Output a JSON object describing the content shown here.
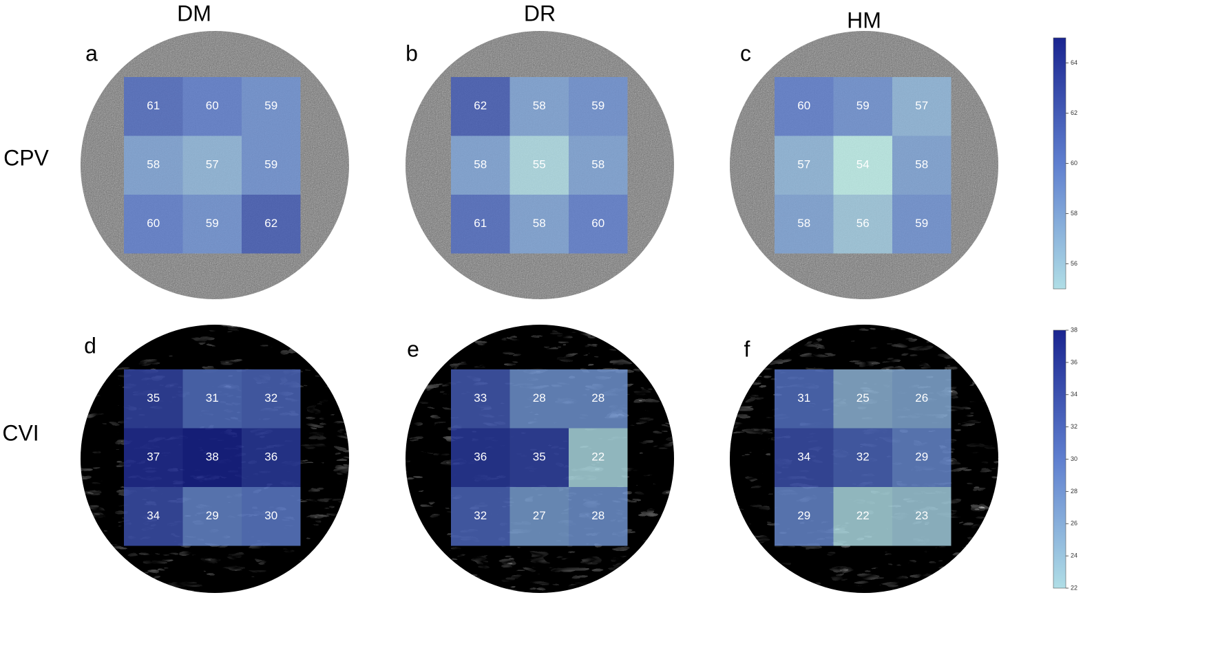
{
  "columns": [
    "DM",
    "DR",
    "HM"
  ],
  "chart_data": [
    {
      "type": "heatmap",
      "row_label": "CPV",
      "zlim": [
        55,
        65
      ],
      "zticks": [
        56,
        58,
        60,
        62,
        64
      ],
      "panels": [
        {
          "label": "a",
          "values": [
            [
              61,
              60,
              59
            ],
            [
              58,
              57,
              59
            ],
            [
              60,
              59,
              62
            ]
          ]
        },
        {
          "label": "b",
          "values": [
            [
              62,
              58,
              59
            ],
            [
              58,
              55,
              58
            ],
            [
              61,
              58,
              60
            ]
          ]
        },
        {
          "label": "c",
          "values": [
            [
              60,
              59,
              57
            ],
            [
              57,
              54,
              58
            ],
            [
              58,
              56,
              59
            ]
          ]
        }
      ]
    },
    {
      "type": "heatmap",
      "row_label": "CVI",
      "zlim": [
        22,
        38
      ],
      "zticks": [
        22,
        24,
        26,
        28,
        30,
        32,
        34,
        36,
        38
      ],
      "panels": [
        {
          "label": "d",
          "values": [
            [
              35,
              31,
              32
            ],
            [
              37,
              38,
              36
            ],
            [
              34,
              29,
              30
            ]
          ]
        },
        {
          "label": "e",
          "values": [
            [
              33,
              28,
              28
            ],
            [
              36,
              35,
              22
            ],
            [
              32,
              27,
              28
            ]
          ]
        },
        {
          "label": "f",
          "values": [
            [
              31,
              25,
              26
            ],
            [
              34,
              32,
              29
            ],
            [
              29,
              22,
              23
            ]
          ]
        }
      ]
    }
  ]
}
